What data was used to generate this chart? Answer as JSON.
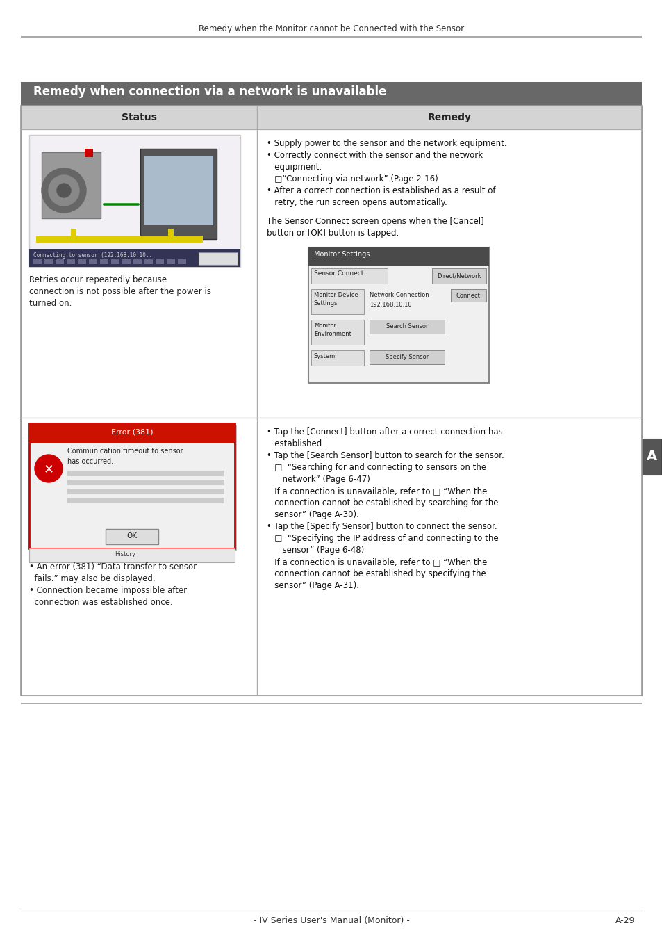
{
  "page_header": "Remedy when the Monitor cannot be Connected with the Sensor",
  "section_title": "Remedy when connection via a network is unavailable",
  "table_header_status": "Status",
  "table_header_remedy": "Remedy",
  "header_bg": "#666666",
  "header_fg": "#ffffff",
  "table_header_bg": "#d4d4d4",
  "table_header_fg": "#222222",
  "body_bg": "#ffffff",
  "border_color": "#aaaaaa",
  "sidebar_label": "A",
  "sidebar_bg": "#555555",
  "sidebar_fg": "#ffffff",
  "footer_text": "- IV Series User's Manual (Monitor) -",
  "footer_page": "A-29",
  "row1_status_lines": [
    "Retries occur repeatedly because",
    "connection is not possible after the power is",
    "turned on."
  ],
  "row1_remedy_lines": [
    "• Supply power to the sensor and the network equipment.",
    "• Correctly connect with the sensor and the network",
    "   equipment.",
    "   □“Connecting via network” (Page 2-16)",
    "• After a correct connection is established as a result of",
    "   retry, the run screen opens automatically."
  ],
  "row1_remedy_extra": [
    "The Sensor Connect screen opens when the [Cancel]",
    "button or [OK] button is tapped."
  ],
  "row2_status_lines": [
    "• An error (381) “Data transfer to sensor",
    "  fails.” may also be displayed.",
    "• Connection became impossible after",
    "  connection was established once."
  ],
  "row2_remedy_lines": [
    "• Tap the [Connect] button after a correct connection has",
    "   established.",
    "• Tap the [Search Sensor] button to search for the sensor.",
    "   □  “Searching for and connecting to sensors on the",
    "      network” (Page 6-47)",
    "   If a connection is unavailable, refer to □ “When the",
    "   connection cannot be established by searching for the",
    "   sensor” (Page A-30).",
    "• Tap the [Specify Sensor] button to connect the sensor.",
    "   □  “Specifying the IP address of and connecting to the",
    "      sensor” (Page 6-48)",
    "   If a connection is unavailable, refer to □ “When the",
    "   connection cannot be established by specifying the",
    "   sensor” (Page A-31)."
  ]
}
